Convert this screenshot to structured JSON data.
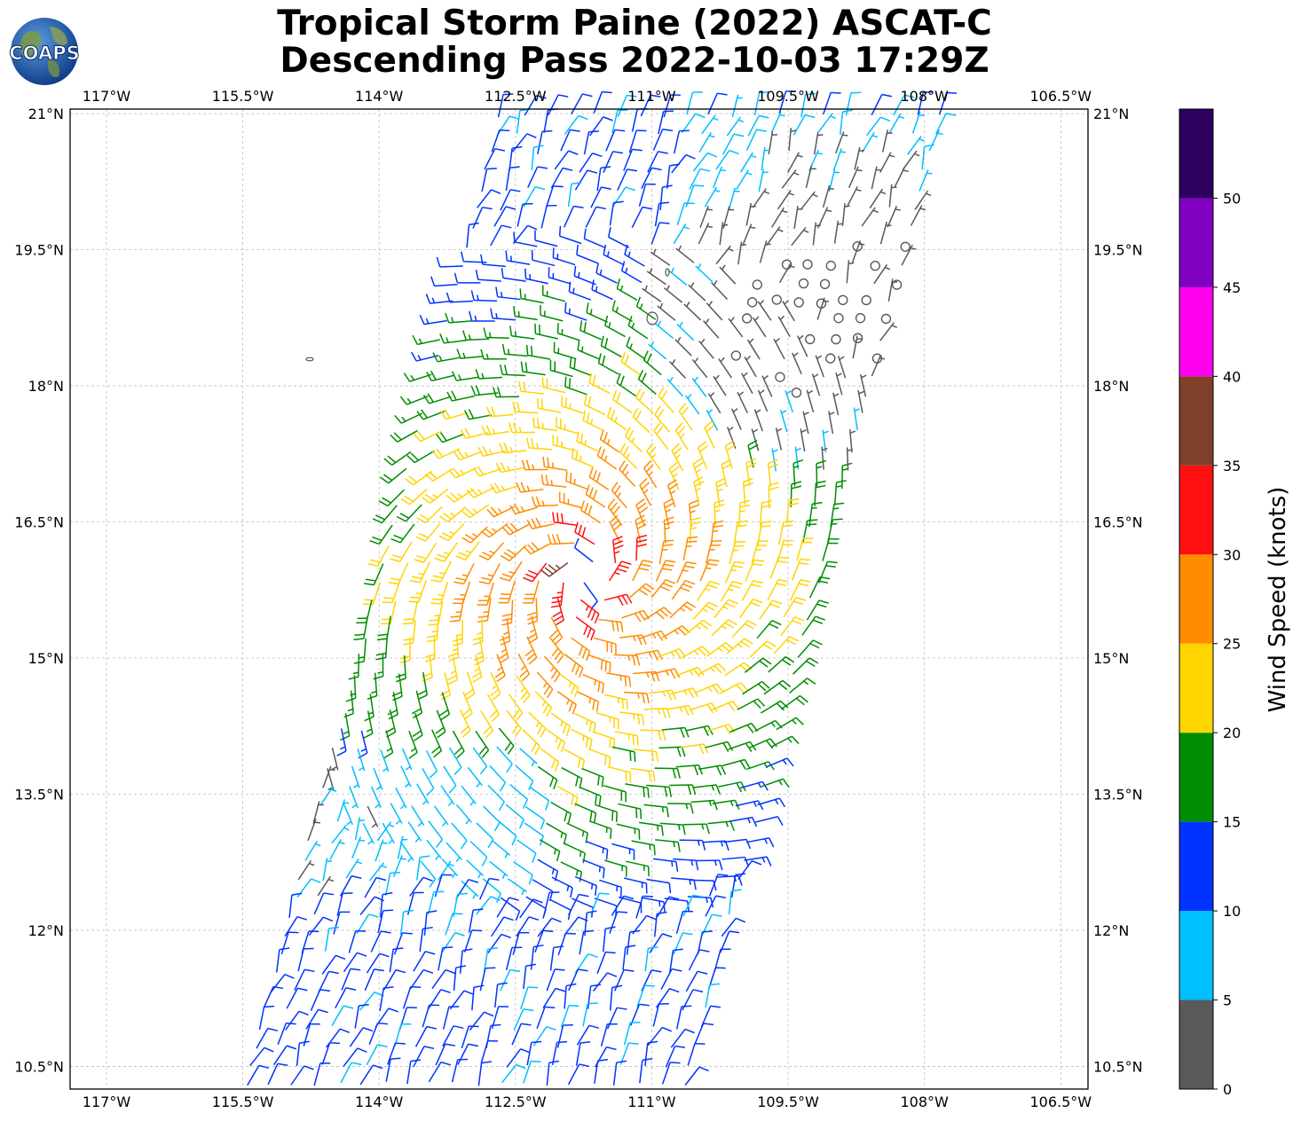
{
  "title": {
    "line1": "Tropical Storm Paine (2022) ASCAT-C",
    "line2": "Descending Pass 2022-10-03 17:29Z"
  },
  "logo": {
    "text": "COAPS"
  },
  "map": {
    "lon_range": [
      -117.4,
      -106.2
    ],
    "lat_range": [
      10.25,
      21.05
    ],
    "lon_ticks": [
      "117°W",
      "115.5°W",
      "114°W",
      "112.5°W",
      "111°W",
      "109.5°W",
      "108°W",
      "106.5°W"
    ],
    "lon_tick_values": [
      -117,
      -115.5,
      -114,
      -112.5,
      -111,
      -109.5,
      -108,
      -106.5
    ],
    "lat_ticks": [
      "21°N",
      "19.5°N",
      "18°N",
      "16.5°N",
      "15°N",
      "13.5°N",
      "12°N",
      "10.5°N"
    ],
    "lat_tick_values": [
      21,
      19.5,
      18,
      16.5,
      15,
      13.5,
      12,
      10.5
    ],
    "grid": true,
    "storm_center": {
      "lon": -111.7,
      "lat": 15.9
    }
  },
  "colorbar": {
    "label": "Wind Speed (knots)",
    "ticks": [
      "0",
      "5",
      "10",
      "15",
      "20",
      "25",
      "30",
      "35",
      "40",
      "45",
      "50"
    ],
    "bins": [
      {
        "from": 0,
        "to": 5,
        "color": "#595959"
      },
      {
        "from": 5,
        "to": 10,
        "color": "#00bfff"
      },
      {
        "from": 10,
        "to": 15,
        "color": "#0033ff"
      },
      {
        "from": 15,
        "to": 20,
        "color": "#008c00"
      },
      {
        "from": 20,
        "to": 25,
        "color": "#ffd400"
      },
      {
        "from": 25,
        "to": 30,
        "color": "#ff8c00"
      },
      {
        "from": 30,
        "to": 35,
        "color": "#ff1010"
      },
      {
        "from": 35,
        "to": 40,
        "color": "#803f28"
      },
      {
        "from": 40,
        "to": 45,
        "color": "#ff00ee"
      },
      {
        "from": 45,
        "to": 50,
        "color": "#8000bf"
      },
      {
        "from": 50,
        "to": 55,
        "color": "#2b005e"
      }
    ]
  }
}
